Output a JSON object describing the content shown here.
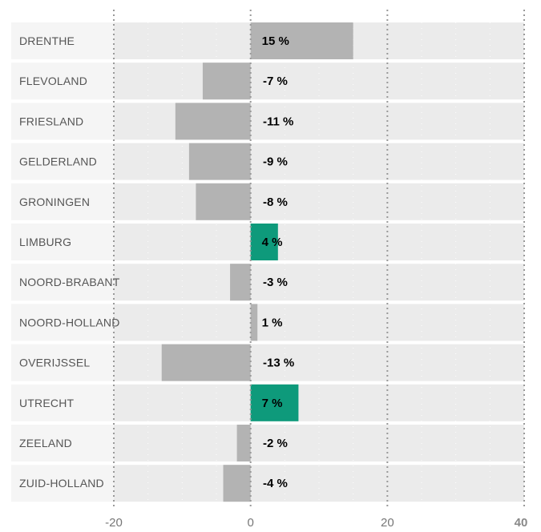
{
  "chart_data": {
    "type": "bar",
    "orientation": "horizontal",
    "categories": [
      "DRENTHE",
      "FLEVOLAND",
      "FRIESLAND",
      "GELDERLAND",
      "GRONINGEN",
      "LIMBURG",
      "NOORD-BRABANT",
      "NOORD-HOLLAND",
      "OVERIJSSEL",
      "UTRECHT",
      "ZEELAND",
      "ZUID-HOLLAND"
    ],
    "values": [
      15,
      -7,
      -11,
      -9,
      -8,
      4,
      -3,
      1,
      -13,
      7,
      -2,
      -4
    ],
    "value_labels": [
      "15 %",
      "-7 %",
      "-11 %",
      "-9 %",
      "-8 %",
      "4 %",
      "-3 %",
      "1 %",
      "-13 %",
      "7 %",
      "-2 %",
      "-4 %"
    ],
    "xlim": [
      -20,
      40
    ],
    "ticks": [
      -20,
      0,
      20,
      40
    ],
    "tick_labels": [
      "-20",
      "0",
      "20",
      "40"
    ],
    "bold_tick": 40,
    "grid": true,
    "colors": {
      "bar_default": "#b3b3b3",
      "bar_highlight": "#0e9a7b",
      "row_background": "#ebebeb",
      "label_background": "#f5f5f5",
      "gridline": "#999999"
    },
    "highlighted_categories": [
      "LIMBURG",
      "UTRECHT"
    ]
  }
}
